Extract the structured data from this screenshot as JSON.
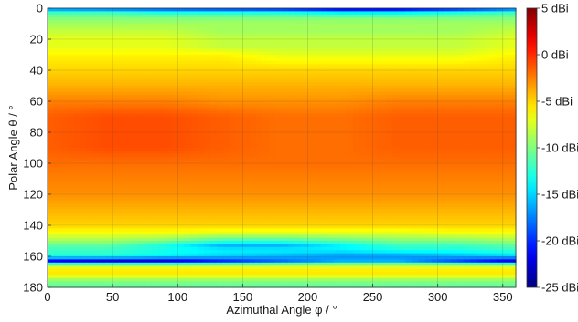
{
  "chart_data": {
    "type": "heatmap",
    "xlabel": "Azimuthal Angle φ / °",
    "ylabel": "Polar Angle θ / °",
    "xlim": [
      0,
      360
    ],
    "ylim": [
      0,
      180
    ],
    "y_reversed": true,
    "x_ticks": [
      0,
      50,
      100,
      150,
      200,
      250,
      300,
      350
    ],
    "y_ticks": [
      0,
      20,
      40,
      60,
      80,
      100,
      120,
      140,
      160,
      180
    ],
    "grid": true,
    "colormap": "jet",
    "colorbar": {
      "min": -25,
      "max": 5,
      "unit": "dBi",
      "ticks": [
        5,
        0,
        -5,
        -10,
        -15,
        -20,
        -25
      ],
      "tick_labels": [
        "5 dBi",
        "0 dBi",
        "-5 dBi",
        "-10 dBi",
        "-15 dBi",
        "-20 dBi",
        "-25 dBi"
      ],
      "placement": "right"
    },
    "theta_samples": [
      0,
      3,
      6,
      10,
      15,
      20,
      25,
      30,
      40,
      50,
      60,
      70,
      80,
      90,
      100,
      110,
      120,
      130,
      140,
      145,
      150,
      153,
      156,
      160,
      163,
      166,
      170,
      173,
      176,
      180
    ],
    "phi_samples": [
      0,
      45,
      90,
      135,
      180,
      225,
      270,
      315,
      360
    ],
    "gain_dbi": [
      [
        -18,
        -19,
        -20,
        -21,
        -22,
        -24,
        -24,
        -22,
        -19
      ],
      [
        -12,
        -12,
        -13,
        -13,
        -13,
        -14,
        -14,
        -13,
        -12
      ],
      [
        -10,
        -10,
        -10,
        -10,
        -10,
        -10,
        -10,
        -10,
        -10
      ],
      [
        -9,
        -9,
        -9,
        -9,
        -9,
        -9,
        -9,
        -9,
        -9
      ],
      [
        -8,
        -8,
        -8,
        -9,
        -9,
        -9,
        -9,
        -9,
        -8
      ],
      [
        -7,
        -7,
        -7,
        -8,
        -8,
        -8,
        -8,
        -8,
        -7
      ],
      [
        -7,
        -7,
        -7,
        -8,
        -8,
        -8,
        -8,
        -8,
        -7
      ],
      [
        -6,
        -6,
        -6,
        -6,
        -7,
        -7,
        -7,
        -7,
        -6
      ],
      [
        -5,
        -5,
        -5,
        -5,
        -5,
        -5,
        -5,
        -5,
        -5
      ],
      [
        -4,
        -4,
        -4,
        -4,
        -4,
        -4,
        -4,
        -4,
        -4
      ],
      [
        -2.5,
        -2.5,
        -2.5,
        -3,
        -3,
        -3,
        -2.5,
        -2.5,
        -2.5
      ],
      [
        -1.5,
        -1,
        -1,
        -1.5,
        -2,
        -2,
        -1.5,
        -1.5,
        -1.5
      ],
      [
        -1.5,
        -1,
        -1,
        -1.5,
        -2,
        -2,
        -1.5,
        -1.5,
        -1.5
      ],
      [
        -1.5,
        -1,
        -1,
        -1.5,
        -2,
        -2,
        -1.5,
        -1.5,
        -1.5
      ],
      [
        -2,
        -2,
        -2,
        -2,
        -2,
        -2,
        -2,
        -2,
        -2
      ],
      [
        -2.5,
        -2.5,
        -2.5,
        -2.5,
        -2.5,
        -2.5,
        -2.5,
        -2.5,
        -2.5
      ],
      [
        -3,
        -3,
        -3,
        -3,
        -3,
        -3,
        -3,
        -3,
        -3
      ],
      [
        -4,
        -4,
        -4,
        -4,
        -4,
        -4,
        -4,
        -4,
        -4
      ],
      [
        -5,
        -5,
        -5,
        -5,
        -5,
        -5,
        -5,
        -5,
        -5
      ],
      [
        -6.5,
        -6.5,
        -6.5,
        -7,
        -7,
        -7,
        -7,
        -6.5,
        -6.5
      ],
      [
        -9,
        -9,
        -10,
        -12,
        -12,
        -11,
        -10,
        -10,
        -9
      ],
      [
        -11,
        -11,
        -13,
        -16,
        -16,
        -14,
        -12,
        -12,
        -11
      ],
      [
        -12,
        -12,
        -13,
        -14,
        -14,
        -14,
        -13,
        -13,
        -12
      ],
      [
        -13,
        -13,
        -14,
        -15,
        -16,
        -17,
        -17,
        -16,
        -15
      ],
      [
        -21,
        -22,
        -22,
        -20,
        -18,
        -16,
        -16,
        -19,
        -22
      ],
      [
        -8,
        -8,
        -8,
        -8,
        -8,
        -8,
        -8,
        -8,
        -8
      ],
      [
        -5,
        -5,
        -5,
        -5,
        -5,
        -5,
        -5,
        -5,
        -5
      ],
      [
        -7,
        -7,
        -7,
        -7,
        -7,
        -7,
        -7,
        -7,
        -7
      ],
      [
        -10,
        -10,
        -10,
        -10,
        -10,
        -10,
        -10,
        -10,
        -10
      ],
      [
        -11,
        -11,
        -11,
        -11,
        -11,
        -11,
        -11,
        -11,
        -11
      ]
    ]
  }
}
